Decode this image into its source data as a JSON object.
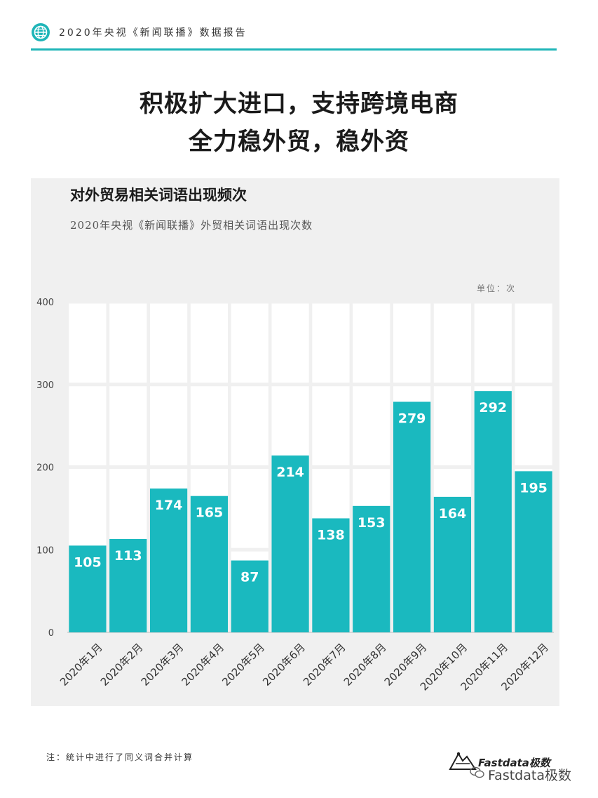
{
  "header": {
    "title": "2020年央视《新闻联播》数据报告",
    "accent_color": "#1fb5b8",
    "icon": "globe-icon"
  },
  "headline": {
    "line1": "积极扩大进口，支持跨境电商",
    "line2": "全力稳外贸，稳外资"
  },
  "footnote": "注：统计中进行了同义词合并计算",
  "brand": {
    "name": "Fastdata极数",
    "watermark": "Fastdata极数",
    "icon": "fastdata-logo-icon"
  },
  "chart_data": {
    "type": "bar",
    "title": "对外贸易相关词语出现频次",
    "subtitle": "2020年央视《新闻联播》外贸相关词语出现次数",
    "unit_label": "单位：次",
    "categories": [
      "2020年1月",
      "2020年2月",
      "2020年3月",
      "2020年4月",
      "2020年5月",
      "2020年6月",
      "2020年7月",
      "2020年8月",
      "2020年9月",
      "2020年10月",
      "2020年11月",
      "2020年12月"
    ],
    "values": [
      105,
      113,
      174,
      165,
      87,
      214,
      138,
      153,
      279,
      164,
      292,
      195
    ],
    "ylim": [
      0,
      400
    ],
    "yticks": [
      0,
      100,
      200,
      300,
      400
    ],
    "grid": true,
    "bar_color": "#1ab9bf",
    "label_color": "#ffffff"
  }
}
